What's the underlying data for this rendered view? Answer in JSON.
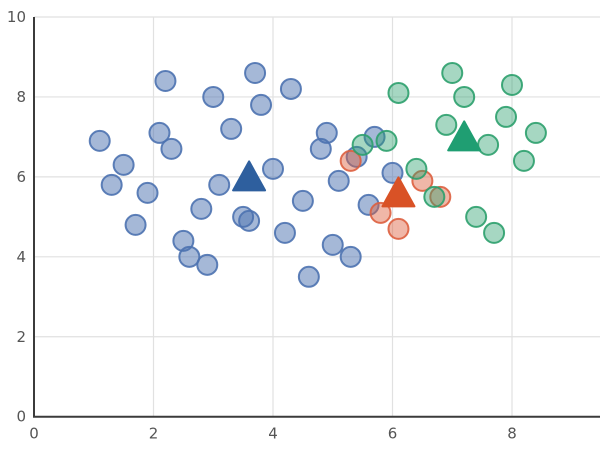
{
  "chart_data": {
    "type": "scatter",
    "title": "",
    "xlabel": "",
    "ylabel": "",
    "xlim": [
      0,
      9.47
    ],
    "ylim": [
      0,
      10
    ],
    "x_ticks": [
      0,
      2,
      4,
      6,
      8
    ],
    "y_ticks": [
      0,
      2,
      4,
      6,
      8,
      10
    ],
    "grid": true,
    "legend": "none",
    "colors": {
      "grid": "#e1e1e1",
      "spine": "#3b3b3b",
      "tick_text": "#555555",
      "cluster_blue": "#4c72b0",
      "cluster_orange": "#dd5f3f",
      "cluster_green": "#2ca06d",
      "centroid_blue": "#2e5f9e",
      "centroid_orange": "#d95226",
      "centroid_green": "#1f9e72"
    },
    "series": [
      {
        "name": "cluster-0-points",
        "marker": "circle",
        "color": "#4c72b0",
        "fill_opacity": 0.5,
        "points": [
          [
            2.2,
            8.4
          ],
          [
            3.0,
            8.0
          ],
          [
            3.7,
            8.6
          ],
          [
            4.3,
            8.2
          ],
          [
            3.8,
            7.8
          ],
          [
            3.3,
            7.2
          ],
          [
            2.1,
            7.1
          ],
          [
            2.3,
            6.7
          ],
          [
            1.1,
            6.9
          ],
          [
            1.5,
            6.3
          ],
          [
            1.3,
            5.8
          ],
          [
            1.9,
            5.6
          ],
          [
            1.7,
            4.8
          ],
          [
            2.5,
            4.4
          ],
          [
            2.6,
            4.0
          ],
          [
            2.9,
            3.8
          ],
          [
            2.8,
            5.2
          ],
          [
            3.1,
            5.8
          ],
          [
            4.0,
            6.2
          ],
          [
            4.5,
            5.4
          ],
          [
            3.5,
            5.0
          ],
          [
            3.6,
            4.9
          ],
          [
            4.2,
            4.6
          ],
          [
            5.0,
            4.3
          ],
          [
            5.3,
            4.0
          ],
          [
            4.6,
            3.5
          ],
          [
            4.8,
            6.7
          ],
          [
            4.9,
            7.1
          ],
          [
            5.1,
            5.9
          ],
          [
            5.4,
            6.5
          ],
          [
            5.7,
            7.0
          ],
          [
            6.0,
            6.1
          ],
          [
            5.6,
            5.3
          ]
        ]
      },
      {
        "name": "cluster-1-points",
        "marker": "circle",
        "color": "#dd5f3f",
        "fill_opacity": 0.45,
        "points": [
          [
            5.3,
            6.4
          ],
          [
            6.5,
            5.9
          ],
          [
            6.8,
            5.5
          ],
          [
            5.8,
            5.1
          ],
          [
            6.1,
            4.7
          ]
        ]
      },
      {
        "name": "cluster-2-points",
        "marker": "circle",
        "color": "#2ca06d",
        "fill_opacity": 0.42,
        "points": [
          [
            5.5,
            6.8
          ],
          [
            5.9,
            6.9
          ],
          [
            6.1,
            8.1
          ],
          [
            6.4,
            6.2
          ],
          [
            6.7,
            5.5
          ],
          [
            6.9,
            7.3
          ],
          [
            7.0,
            8.6
          ],
          [
            7.2,
            8.0
          ],
          [
            7.4,
            5.0
          ],
          [
            7.6,
            6.8
          ],
          [
            7.7,
            4.6
          ],
          [
            7.9,
            7.5
          ],
          [
            8.0,
            8.3
          ],
          [
            8.2,
            6.4
          ],
          [
            8.4,
            7.1
          ]
        ]
      },
      {
        "name": "centroid-0",
        "marker": "triangle",
        "color": "#2e5f9e",
        "points": [
          [
            3.6,
            6.0
          ]
        ]
      },
      {
        "name": "centroid-1",
        "marker": "triangle",
        "color": "#d95226",
        "points": [
          [
            6.1,
            5.6
          ]
        ]
      },
      {
        "name": "centroid-2",
        "marker": "triangle",
        "color": "#1f9e72",
        "points": [
          [
            7.2,
            7.0
          ]
        ]
      }
    ]
  }
}
